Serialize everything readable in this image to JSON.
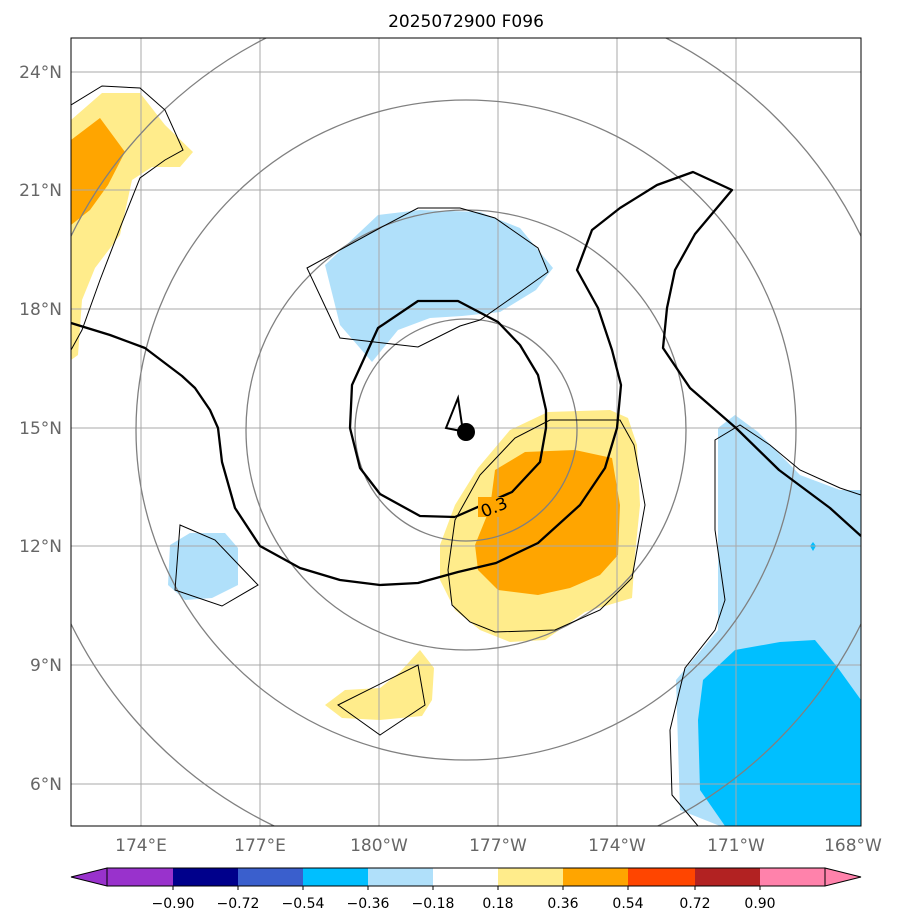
{
  "title": "2025072900 F096",
  "lat_ticks": [
    "24°N",
    "21°N",
    "18°N",
    "15°N",
    "12°N",
    "9°N",
    "6°N"
  ],
  "lon_ticks": [
    "174°E",
    "177°E",
    "180°W",
    "177°W",
    "174°W",
    "171°W",
    "168°W"
  ],
  "contour_label": "0.3",
  "colorbar": {
    "colors": [
      "#9932cc",
      "#00008b",
      "#3a5fcd",
      "#00bfff",
      "#b0e0fa",
      "#ffffff",
      "#ffec8b",
      "#ffa500",
      "#ff4500",
      "#b22222",
      "#ff82ab"
    ],
    "labels": [
      "−0.90",
      "−0.72",
      "−0.54",
      "−0.36",
      "−0.18",
      "0.18",
      "0.36",
      "0.54",
      "0.72",
      "0.90"
    ]
  },
  "colors": {
    "light_blue": "#b0e0fa",
    "blue": "#00bfff",
    "yellow": "#ffec8b",
    "orange": "#ffa500",
    "gray_line": "#808080",
    "black": "#000000"
  }
}
